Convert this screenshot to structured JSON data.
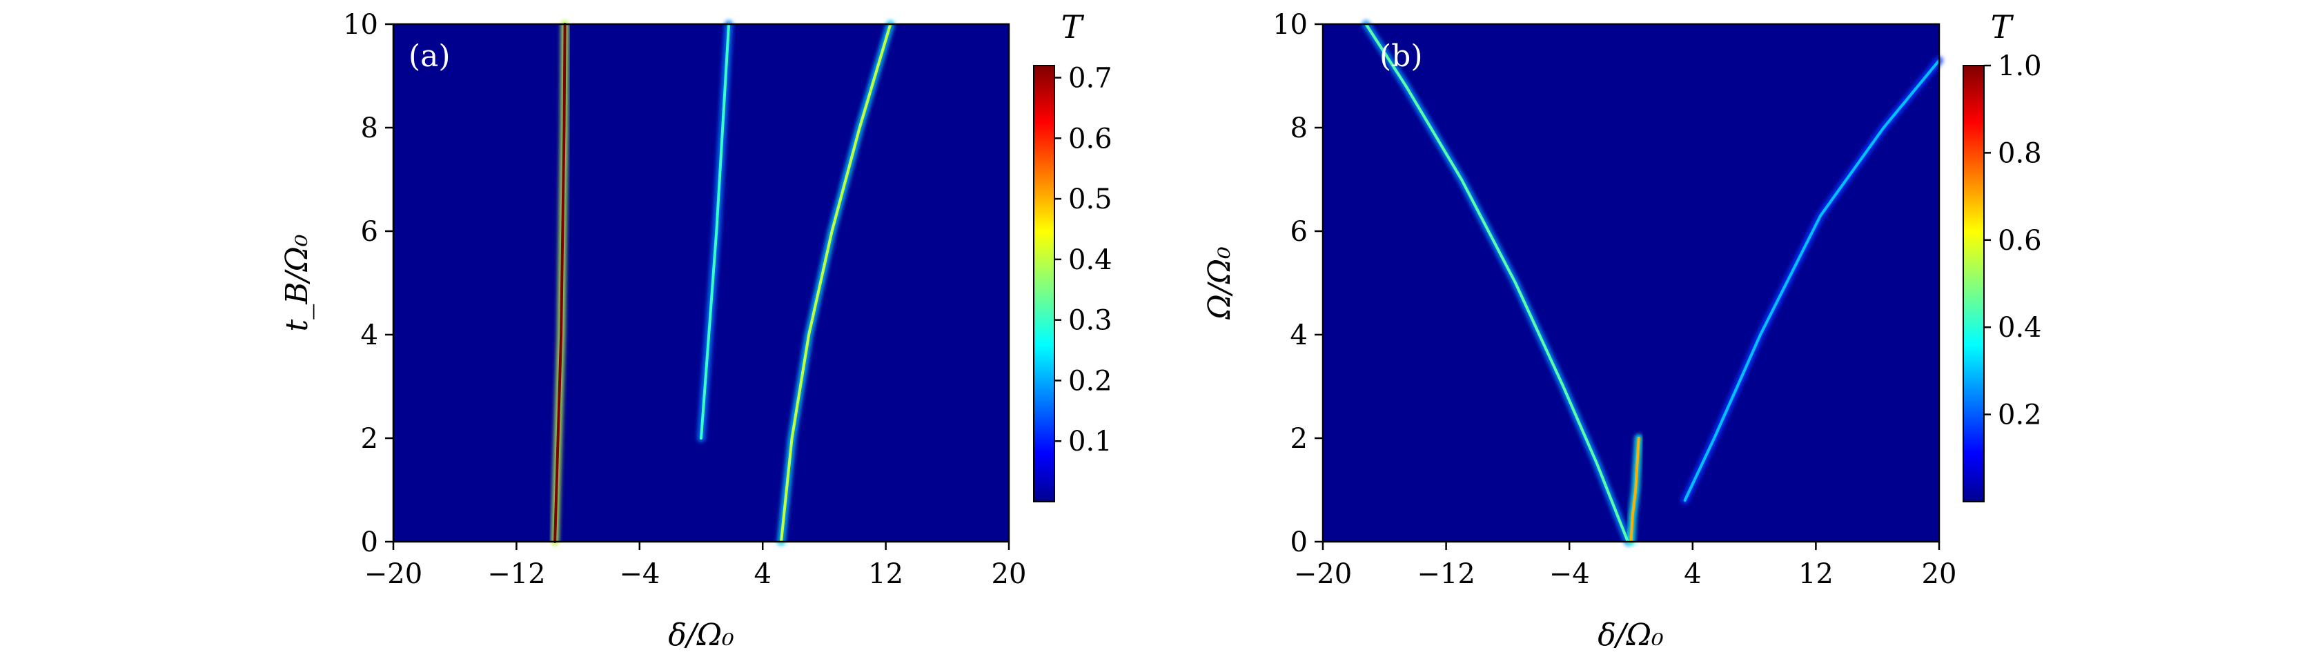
{
  "colors": {
    "background": "#ffffff",
    "axis": "#000000",
    "cmap_low": "#00008f",
    "panel_label": "#ffffff"
  },
  "chart_data": [
    {
      "type": "heatmap",
      "panel_label": "(a)",
      "xlabel": "δ/Ω₀",
      "ylabel": "t_B/Ω₀",
      "xlim": [
        -20,
        20
      ],
      "ylim": [
        0,
        10
      ],
      "xticks": [
        -20,
        -12,
        -4,
        4,
        12,
        20
      ],
      "xtick_labels": [
        "−20",
        "−12",
        "−4",
        "4",
        "12",
        "20"
      ],
      "yticks": [
        0,
        2,
        4,
        6,
        8,
        10
      ],
      "ytick_labels": [
        "0",
        "2",
        "4",
        "6",
        "8",
        "10"
      ],
      "colorbar": {
        "title": "T",
        "range": [
          0,
          0.72
        ],
        "ticks": [
          0.1,
          0.2,
          0.3,
          0.4,
          0.5,
          0.6,
          0.7
        ],
        "tick_labels": [
          "0.1",
          "0.2",
          "0.3",
          "0.4",
          "0.5",
          "0.6",
          "0.7"
        ],
        "colormap": "jet"
      },
      "ridges": [
        {
          "points": [
            [
              -9.5,
              0
            ],
            [
              -9.3,
              2
            ],
            [
              -9.1,
              4
            ],
            [
              -9.0,
              6
            ],
            [
              -8.9,
              8
            ],
            [
              -8.85,
              10
            ]
          ],
          "peak": 0.72
        },
        {
          "points": [
            [
              0.0,
              2.0
            ],
            [
              0.5,
              4
            ],
            [
              1.0,
              6
            ],
            [
              1.4,
              8
            ],
            [
              1.8,
              10
            ]
          ],
          "peak": 0.3
        },
        {
          "points": [
            [
              5.2,
              0
            ],
            [
              5.9,
              2
            ],
            [
              7.0,
              4
            ],
            [
              8.5,
              6
            ],
            [
              10.3,
              8
            ],
            [
              12.3,
              10
            ]
          ],
          "peak": 0.4
        }
      ]
    },
    {
      "type": "heatmap",
      "panel_label": "(b)",
      "xlabel": "δ/Ω₀",
      "ylabel": "Ω/Ω₀",
      "xlim": [
        -20,
        20
      ],
      "ylim": [
        0,
        10
      ],
      "xticks": [
        -20,
        -12,
        -4,
        4,
        12,
        20
      ],
      "xtick_labels": [
        "−20",
        "−12",
        "−4",
        "4",
        "12",
        "20"
      ],
      "yticks": [
        0,
        2,
        4,
        6,
        8,
        10
      ],
      "ytick_labels": [
        "0",
        "2",
        "4",
        "6",
        "8",
        "10"
      ],
      "colorbar": {
        "title": "T",
        "range": [
          0,
          1.0
        ],
        "ticks": [
          0.2,
          0.4,
          0.6,
          0.8,
          1.0
        ],
        "tick_labels": [
          "0.2",
          "0.4",
          "0.6",
          "0.8",
          "1.0"
        ],
        "colormap": "jet"
      },
      "ridges": [
        {
          "points": [
            [
              -0.2,
              0
            ],
            [
              -2.2,
              1.5
            ],
            [
              -4.4,
              3
            ],
            [
              -7.5,
              5
            ],
            [
              -11,
              7
            ],
            [
              -14.6,
              8.8
            ],
            [
              -17.2,
              10
            ]
          ],
          "peak": 0.45
        },
        {
          "points": [
            [
              0.0,
              0
            ],
            [
              0.1,
              0.5
            ],
            [
              0.3,
              1.0
            ],
            [
              0.4,
              1.5
            ],
            [
              0.5,
              2.0
            ]
          ],
          "peak": 0.7
        },
        {
          "points": [
            [
              3.5,
              0.8
            ],
            [
              5.4,
              2
            ],
            [
              8.4,
              4
            ],
            [
              12.3,
              6.3
            ],
            [
              16.4,
              8
            ],
            [
              20,
              9.3
            ]
          ],
          "peak": 0.3
        }
      ]
    }
  ]
}
